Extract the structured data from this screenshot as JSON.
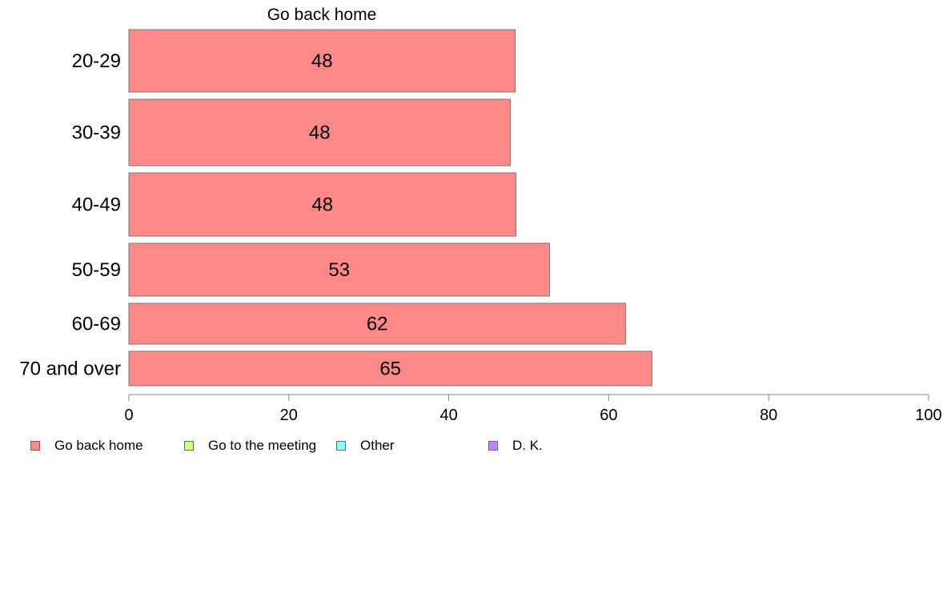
{
  "chart_data": {
    "type": "bar",
    "orientation": "horizontal",
    "title": "Go back home",
    "categories": [
      "20-29",
      "30-39",
      "40-49",
      "50-59",
      "60-69",
      "70 and over"
    ],
    "series": [
      {
        "name": "Go back home",
        "values": [
          48,
          48,
          48,
          53,
          62,
          65
        ],
        "color": "#ff8888"
      }
    ],
    "bar_value_estimates": [
      48.3,
      47.7,
      48.4,
      52.6,
      62.1,
      65.4
    ],
    "xlim": [
      0,
      100
    ],
    "x_ticks": [
      "0",
      "20",
      "40",
      "60",
      "80",
      "100"
    ],
    "grid": false,
    "legend_position": "bottom",
    "legend": [
      {
        "label": "Go back home",
        "color": "#ff8888"
      },
      {
        "label": "Go to the meeting",
        "color": "#ccff88"
      },
      {
        "label": "Other",
        "color": "#88ffff"
      },
      {
        "label": "D. K.",
        "color": "#bb88ff"
      }
    ]
  }
}
